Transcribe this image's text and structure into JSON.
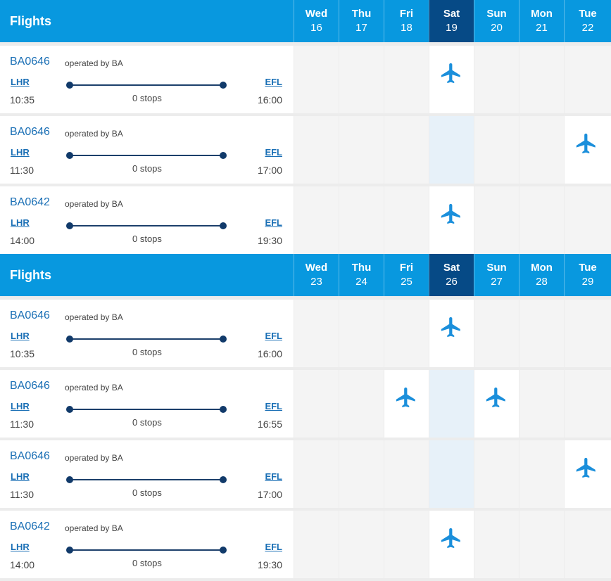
{
  "colors": {
    "header": "#0898df",
    "selected_day": "#064a86",
    "link": "#1a6fb5",
    "plane": "#1b8fdb"
  },
  "weeks": [
    {
      "title": "Flights",
      "days": [
        {
          "name": "Wed",
          "num": "16"
        },
        {
          "name": "Thu",
          "num": "17"
        },
        {
          "name": "Fri",
          "num": "18"
        },
        {
          "name": "Sat",
          "num": "19"
        },
        {
          "name": "Sun",
          "num": "20"
        },
        {
          "name": "Mon",
          "num": "21"
        },
        {
          "name": "Tue",
          "num": "22"
        }
      ],
      "selected_day_index": 3,
      "flights": [
        {
          "number": "BA0646",
          "operated": "operated by BA",
          "origin": "LHR",
          "destination": "EFL",
          "depart": "10:35",
          "arrive": "16:00",
          "stops": "0 stops",
          "days_available": [
            3
          ]
        },
        {
          "number": "BA0646",
          "operated": "operated by BA",
          "origin": "LHR",
          "destination": "EFL",
          "depart": "11:30",
          "arrive": "17:00",
          "stops": "0 stops",
          "days_available": [
            6
          ]
        },
        {
          "number": "BA0642",
          "operated": "operated by BA",
          "origin": "LHR",
          "destination": "EFL",
          "depart": "14:00",
          "arrive": "19:30",
          "stops": "0 stops",
          "days_available": [
            3
          ]
        }
      ]
    },
    {
      "title": "Flights",
      "days": [
        {
          "name": "Wed",
          "num": "23"
        },
        {
          "name": "Thu",
          "num": "24"
        },
        {
          "name": "Fri",
          "num": "25"
        },
        {
          "name": "Sat",
          "num": "26"
        },
        {
          "name": "Sun",
          "num": "27"
        },
        {
          "name": "Mon",
          "num": "28"
        },
        {
          "name": "Tue",
          "num": "29"
        }
      ],
      "selected_day_index": 3,
      "flights": [
        {
          "number": "BA0646",
          "operated": "operated by BA",
          "origin": "LHR",
          "destination": "EFL",
          "depart": "10:35",
          "arrive": "16:00",
          "stops": "0 stops",
          "days_available": [
            3
          ]
        },
        {
          "number": "BA0646",
          "operated": "operated by BA",
          "origin": "LHR",
          "destination": "EFL",
          "depart": "11:30",
          "arrive": "16:55",
          "stops": "0 stops",
          "days_available": [
            2,
            4
          ]
        },
        {
          "number": "BA0646",
          "operated": "operated by BA",
          "origin": "LHR",
          "destination": "EFL",
          "depart": "11:30",
          "arrive": "17:00",
          "stops": "0 stops",
          "days_available": [
            6
          ]
        },
        {
          "number": "BA0642",
          "operated": "operated by BA",
          "origin": "LHR",
          "destination": "EFL",
          "depart": "14:00",
          "arrive": "19:30",
          "stops": "0 stops",
          "days_available": [
            3
          ]
        }
      ]
    }
  ],
  "icons": {
    "flight": "airplane-icon"
  }
}
